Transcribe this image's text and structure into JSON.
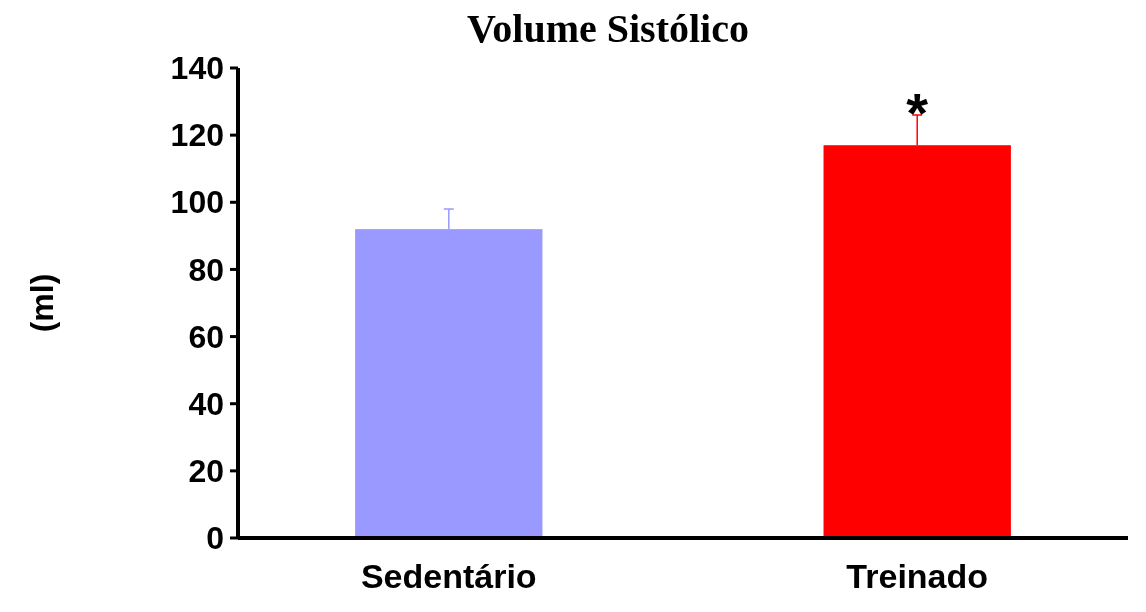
{
  "chart_data": {
    "type": "bar",
    "title": "Volume Sistólico",
    "ylabel": "(ml)",
    "categories": [
      "Sedentário",
      "Treinado"
    ],
    "values": [
      92,
      117
    ],
    "colors": [
      "#9999ff",
      "#ff0000"
    ],
    "errors": [
      6,
      9
    ],
    "ylim": [
      0,
      140
    ],
    "yticks": [
      0,
      20,
      40,
      60,
      80,
      100,
      120,
      140
    ],
    "grid": false,
    "annotations": [
      "*"
    ]
  }
}
